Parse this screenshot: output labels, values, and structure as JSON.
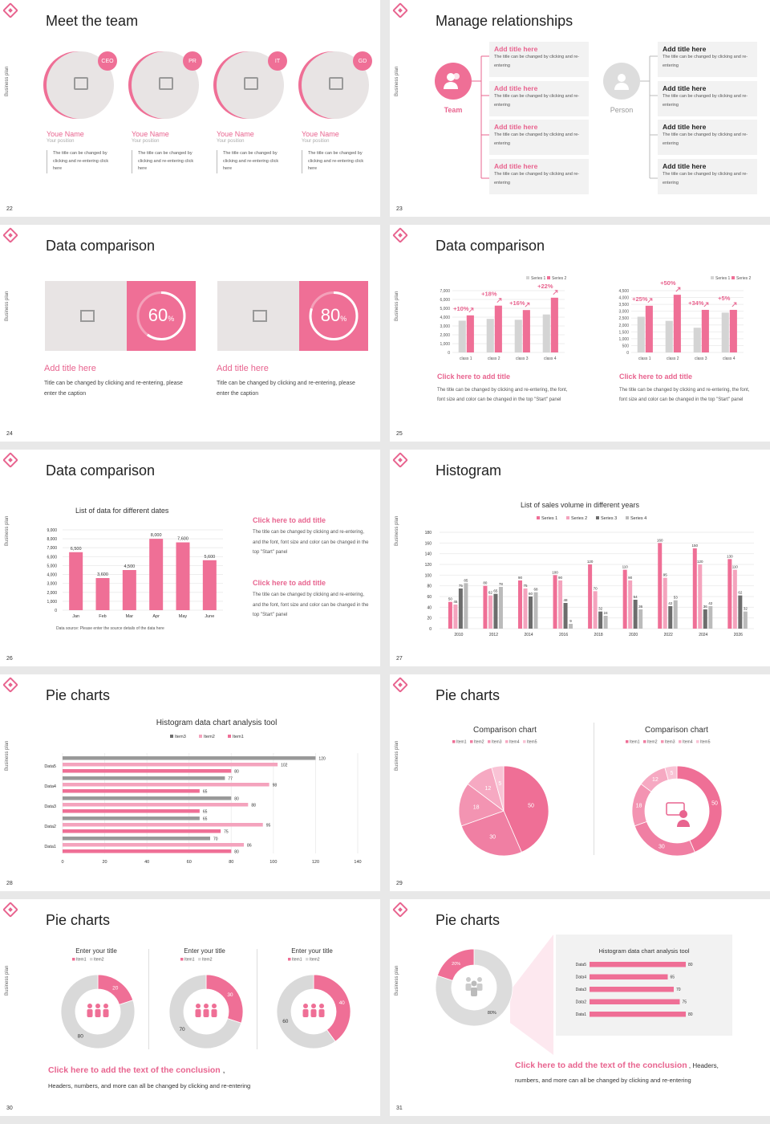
{
  "side_label": "Business plan",
  "slides": {
    "s22": {
      "num": "22",
      "title": "Meet the team",
      "members": [
        {
          "badge": "CEO",
          "name": "Youe Name",
          "position": "Your position",
          "desc": "The title can be changed by clicking and re-entering click here"
        },
        {
          "badge": "PR",
          "name": "Youe Name",
          "position": "Your position",
          "desc": "The title can be changed by clicking and re-entering click here"
        },
        {
          "badge": "IT",
          "name": "Youe Name",
          "position": "Your position",
          "desc": "The title can be changed by clicking and re-entering click here"
        },
        {
          "badge": "GD",
          "name": "Youe Name",
          "position": "Your position",
          "desc": "The title can be changed by clicking and re-entering click here"
        }
      ]
    },
    "s23": {
      "num": "23",
      "title": "Manage relationships",
      "team_label": "Team",
      "person_label": "Person",
      "box_title": "Add title here",
      "box_desc": "The title can be changed by clicking and re-entering"
    },
    "s24": {
      "num": "24",
      "title": "Data comparison",
      "cards": [
        {
          "pct": "60",
          "unit": "%",
          "value": 0.6,
          "heading": "Add title here",
          "desc": "Title can be changed by clicking and re-entering, please enter the caption"
        },
        {
          "pct": "80",
          "unit": "%",
          "value": 0.8,
          "heading": "Add title here",
          "desc": "Title can be changed by clicking and re-entering, please enter the caption"
        }
      ]
    },
    "s25": {
      "num": "25",
      "title": "Data comparison",
      "heading": "Click here to add title",
      "desc": "The title can be changed by clicking and re-entering, the font, font size and color can be changed in the top \"Start\" panel"
    },
    "s26": {
      "num": "26",
      "title": "Data comparison",
      "chart_title": "List of data for different dates",
      "source": "Data source: Please enter the source details of the data here",
      "blocks": [
        {
          "heading": "Click here to add title",
          "desc": "The title can be changed by clicking and re-entering, and the font, font size and color can be changed in the top \"Start\" panel"
        },
        {
          "heading": "Click here to add title",
          "desc": "The title can be changed by clicking and re-entering, and the font, font size and color can be changed in the top \"Start\" panel"
        }
      ]
    },
    "s27": {
      "num": "27",
      "title": "Histogram",
      "chart_title": "List of sales volume in different years"
    },
    "s28": {
      "num": "28",
      "title": "Pie charts",
      "chart_title": "Histogram data chart analysis tool"
    },
    "s29": {
      "num": "29",
      "title": "Pie charts",
      "chart_title": "Comparison chart"
    },
    "s30": {
      "num": "30",
      "title": "Pie charts",
      "chart_title": "Enter your title",
      "conclusion": "Click here to add the text of the conclusion",
      "conclusion_sub": "Headers, numbers, and more can all be changed by clicking and re-entering"
    },
    "s31": {
      "num": "31",
      "title": "Pie charts",
      "chart_title": "Histogram data chart analysis tool",
      "conclusion": "Click here to add the text of the conclusion",
      "conclusion_tail": "Headers,",
      "conclusion_sub": "numbers, and more can all be changed by clicking and re-entering"
    }
  },
  "colors": {
    "pink": "#ef6f96",
    "light_pink": "#f4a3bd",
    "gray": "#cccccc",
    "dark_gray": "#6d6d6d"
  },
  "chart_data": [
    {
      "id": "s25-left",
      "type": "bar",
      "categories": [
        "class 1",
        "class 2",
        "class 3",
        "class 4"
      ],
      "series": [
        {
          "name": "Series 1",
          "values": [
            3600,
            3800,
            3700,
            4300
          ]
        },
        {
          "name": "Series 2",
          "values": [
            4200,
            5300,
            4800,
            6200
          ]
        }
      ],
      "annotations": [
        "+10%",
        "+18%",
        "+16%",
        "+22%"
      ],
      "ylim": [
        0,
        7000
      ],
      "yticks": [
        "0",
        "1,000",
        "2,000",
        "3,000",
        "4,000",
        "5,000",
        "6,000",
        "7,000"
      ]
    },
    {
      "id": "s25-right",
      "type": "bar",
      "categories": [
        "class 1",
        "class 2",
        "class 3",
        "class 4"
      ],
      "series": [
        {
          "name": "Series 1",
          "values": [
            2600,
            2300,
            1800,
            2900
          ]
        },
        {
          "name": "Series 2",
          "values": [
            3400,
            4200,
            3100,
            3100
          ]
        }
      ],
      "annotations": [
        "+25%",
        "+50%",
        "+34%",
        "+5%"
      ],
      "ylim": [
        0,
        4500
      ],
      "yticks": [
        "0",
        "500",
        "1,000",
        "1,500",
        "2,000",
        "2,500",
        "3,000",
        "3,500",
        "4,000",
        "4,500"
      ]
    },
    {
      "id": "s26",
      "type": "bar",
      "title": "List of data for different dates",
      "categories": [
        "Jan",
        "Feb",
        "Mar",
        "Apr",
        "May",
        "June"
      ],
      "values": [
        6500,
        3600,
        4500,
        8000,
        7600,
        5600
      ],
      "labels": [
        "6,500",
        "3,600",
        "4,500",
        "8,000",
        "7,600",
        "5,600"
      ],
      "ylim": [
        0,
        9000
      ],
      "yticks": [
        "0",
        "1,000",
        "2,000",
        "3,000",
        "4,000",
        "5,000",
        "6,000",
        "7,000",
        "8,000",
        "9,000"
      ]
    },
    {
      "id": "s27",
      "type": "bar",
      "title": "List of sales volume in different years",
      "categories": [
        "2010",
        "2012",
        "2014",
        "2016",
        "2018",
        "2020",
        "2022",
        "2024",
        "2026"
      ],
      "series": [
        {
          "name": "Series 1",
          "values": [
            50,
            80,
            90,
            100,
            120,
            110,
            160,
            150,
            130
          ]
        },
        {
          "name": "Series 2",
          "values": [
            45,
            62,
            75,
            90,
            70,
            90,
            95,
            120,
            110
          ]
        },
        {
          "name": "Series 3",
          "values": [
            75,
            65,
            60,
            48,
            32,
            54,
            42,
            36,
            62
          ]
        },
        {
          "name": "Series 4",
          "values": [
            85,
            78,
            68,
            9,
            24,
            36,
            53,
            42,
            32
          ]
        }
      ],
      "ylim": [
        0,
        180
      ],
      "yticks": [
        "0",
        "20",
        "40",
        "60",
        "80",
        "100",
        "120",
        "140",
        "160",
        "180"
      ]
    },
    {
      "id": "s28",
      "type": "bar",
      "orientation": "horizontal",
      "title": "Histogram data chart analysis tool",
      "categories": [
        "Data1",
        "Data2",
        "Data3",
        "Data4",
        "Data5"
      ],
      "series": [
        {
          "name": "Item3",
          "values": [
            70,
            65,
            80,
            77,
            120
          ]
        },
        {
          "name": "Item2",
          "values": [
            86,
            95,
            88,
            98,
            102
          ]
        },
        {
          "name": "Item1",
          "values": [
            80,
            75,
            65,
            65,
            80
          ]
        }
      ],
      "xlim": [
        0,
        140
      ],
      "xticks": [
        "0",
        "20",
        "40",
        "60",
        "80",
        "100",
        "120",
        "140"
      ]
    },
    {
      "id": "s29-left",
      "type": "pie",
      "title": "Comparison chart",
      "categories": [
        "Item1",
        "Item2",
        "Item3",
        "Item4",
        "Item5"
      ],
      "values": [
        50,
        30,
        18,
        12,
        5
      ]
    },
    {
      "id": "s29-right",
      "type": "pie",
      "donut": true,
      "title": "Comparison chart",
      "categories": [
        "Item1",
        "Item2",
        "Item3",
        "Item4",
        "Item5"
      ],
      "values": [
        50,
        30,
        18,
        12,
        5
      ]
    },
    {
      "id": "s30-a",
      "type": "pie",
      "donut": true,
      "title": "Enter your title",
      "categories": [
        "Item1",
        "Item2"
      ],
      "values": [
        20,
        80
      ]
    },
    {
      "id": "s30-b",
      "type": "pie",
      "donut": true,
      "title": "Enter your title",
      "categories": [
        "Item1",
        "Item2"
      ],
      "values": [
        30,
        70
      ]
    },
    {
      "id": "s30-c",
      "type": "pie",
      "donut": true,
      "title": "Enter your title",
      "categories": [
        "Item1",
        "Item2"
      ],
      "values": [
        40,
        60
      ]
    },
    {
      "id": "s31-pie",
      "type": "pie",
      "donut": true,
      "categories": [
        "a",
        "b"
      ],
      "values": [
        80,
        20
      ],
      "labels": [
        "80%",
        "20%"
      ]
    },
    {
      "id": "s31-bar",
      "type": "bar",
      "orientation": "horizontal",
      "title": "Histogram data chart analysis tool",
      "categories": [
        "Data1",
        "Data2",
        "Data3",
        "Data4",
        "Data5"
      ],
      "values": [
        80,
        75,
        70,
        65,
        80
      ],
      "xlim": [
        0,
        100
      ]
    }
  ]
}
